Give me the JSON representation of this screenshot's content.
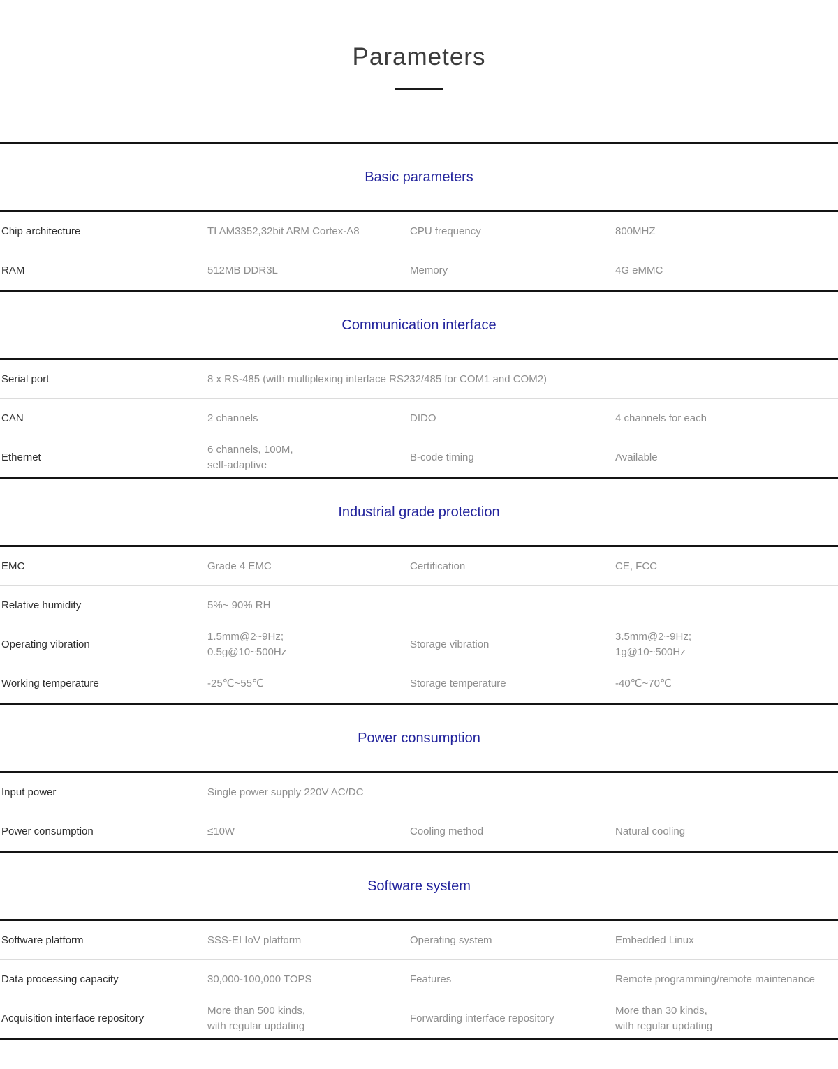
{
  "page": {
    "title": "Parameters"
  },
  "colors": {
    "accent": "#22239c",
    "title_text": "#3c3c3c",
    "label_text": "#2e2e2e",
    "value_text": "#8e8e8e",
    "thick_line": "#141414",
    "thin_line": "#dcdcdc"
  },
  "sections": [
    {
      "title": "Basic parameters",
      "rows": [
        {
          "cells": [
            {
              "kind": "label",
              "text": "Chip architecture"
            },
            {
              "kind": "value",
              "text": "TI AM3352,32bit ARM Cortex-A8"
            },
            {
              "kind": "value",
              "text": "CPU frequency"
            },
            {
              "kind": "value",
              "text": "800MHZ"
            }
          ]
        },
        {
          "cells": [
            {
              "kind": "label",
              "text": "RAM"
            },
            {
              "kind": "value",
              "text": "512MB DDR3L"
            },
            {
              "kind": "value",
              "text": "Memory"
            },
            {
              "kind": "value",
              "text": "4G eMMC"
            }
          ]
        }
      ]
    },
    {
      "title": "Communication interface",
      "rows": [
        {
          "cells": [
            {
              "kind": "label",
              "text": "Serial port"
            },
            {
              "kind": "value",
              "span": 3,
              "text": "8 x RS-485 (with multiplexing interface RS232/485 for COM1 and COM2)"
            }
          ]
        },
        {
          "cells": [
            {
              "kind": "label",
              "text": "CAN"
            },
            {
              "kind": "value",
              "text": "2 channels"
            },
            {
              "kind": "value",
              "text": "DIDO"
            },
            {
              "kind": "value",
              "text": "4 channels for each"
            }
          ]
        },
        {
          "cells": [
            {
              "kind": "label",
              "text": "Ethernet"
            },
            {
              "kind": "value",
              "text": "6 channels, 100M,\nself-adaptive"
            },
            {
              "kind": "value",
              "text": "B-code timing"
            },
            {
              "kind": "value",
              "text": "Available"
            }
          ]
        }
      ]
    },
    {
      "title": "Industrial grade protection",
      "rows": [
        {
          "cells": [
            {
              "kind": "label",
              "text": "EMC"
            },
            {
              "kind": "value",
              "text": "Grade 4 EMC"
            },
            {
              "kind": "value",
              "text": "Certification"
            },
            {
              "kind": "value",
              "text": "CE, FCC"
            }
          ]
        },
        {
          "cells": [
            {
              "kind": "label",
              "text": "Relative humidity"
            },
            {
              "kind": "value",
              "span": 3,
              "text": "5%~ 90% RH"
            }
          ]
        },
        {
          "cells": [
            {
              "kind": "label",
              "text": "Operating vibration"
            },
            {
              "kind": "value",
              "text": "1.5mm@2~9Hz;\n0.5g@10~500Hz"
            },
            {
              "kind": "value",
              "text": "Storage vibration"
            },
            {
              "kind": "value",
              "text": "3.5mm@2~9Hz;\n1g@10~500Hz"
            }
          ]
        },
        {
          "cells": [
            {
              "kind": "label",
              "text": "Working temperature"
            },
            {
              "kind": "value",
              "text": "-25℃~55℃"
            },
            {
              "kind": "value",
              "text": "Storage temperature"
            },
            {
              "kind": "value",
              "text": "-40℃~70℃"
            }
          ]
        }
      ]
    },
    {
      "title": "Power consumption",
      "rows": [
        {
          "cells": [
            {
              "kind": "label",
              "text": "Input power"
            },
            {
              "kind": "value",
              "span": 3,
              "text": "Single power supply 220V AC/DC"
            }
          ]
        },
        {
          "cells": [
            {
              "kind": "label",
              "text": "Power consumption"
            },
            {
              "kind": "value",
              "text": "≤10W"
            },
            {
              "kind": "value",
              "text": "Cooling method"
            },
            {
              "kind": "value",
              "text": "Natural cooling"
            }
          ]
        }
      ]
    },
    {
      "title": "Software system",
      "rows": [
        {
          "cells": [
            {
              "kind": "label",
              "text": "Software platform"
            },
            {
              "kind": "value",
              "text": "SSS-EI IoV platform"
            },
            {
              "kind": "value",
              "text": "Operating system"
            },
            {
              "kind": "value",
              "text": "Embedded Linux"
            }
          ]
        },
        {
          "cells": [
            {
              "kind": "label",
              "text": "Data processing capacity"
            },
            {
              "kind": "value",
              "text": "30,000-100,000 TOPS"
            },
            {
              "kind": "value",
              "text": "Features"
            },
            {
              "kind": "value",
              "text": "Remote programming/remote maintenance"
            }
          ]
        },
        {
          "cells": [
            {
              "kind": "label",
              "text": "Acquisition interface repository"
            },
            {
              "kind": "value",
              "text": "More than 500 kinds,\nwith regular updating"
            },
            {
              "kind": "value",
              "text": "Forwarding interface repository"
            },
            {
              "kind": "value",
              "text": "More than 30 kinds,\nwith regular updating"
            }
          ]
        }
      ]
    }
  ]
}
